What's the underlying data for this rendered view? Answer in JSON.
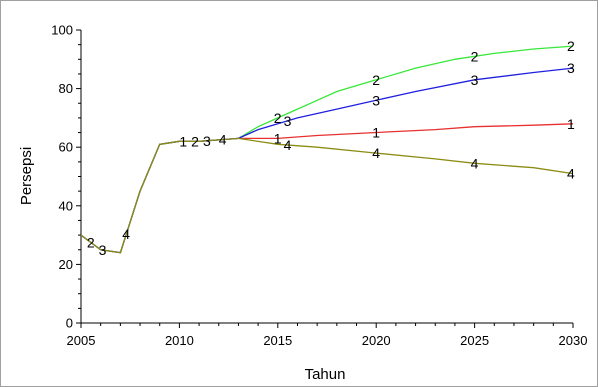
{
  "chart_data": {
    "type": "line",
    "title": "",
    "xlabel": "Tahun",
    "ylabel": "Persepsi",
    "xlim": [
      2005,
      2030
    ],
    "ylim": [
      0,
      100
    ],
    "x_ticks": [
      "2005",
      "2010",
      "2015",
      "2020",
      "2025",
      "2030"
    ],
    "y_ticks": [
      "0",
      "20",
      "40",
      "60",
      "80",
      "100"
    ],
    "grid": false,
    "legend": "none",
    "series": [
      {
        "name": "1",
        "color": "#e83030",
        "points": [
          [
            2005,
            30
          ],
          [
            2006,
            25
          ],
          [
            2007,
            24
          ],
          [
            2008,
            45
          ],
          [
            2009,
            61
          ],
          [
            2010,
            62
          ],
          [
            2011,
            62
          ],
          [
            2012,
            62.5
          ],
          [
            2013,
            63
          ],
          [
            2015,
            63
          ],
          [
            2017,
            64
          ],
          [
            2020,
            65
          ],
          [
            2023,
            66
          ],
          [
            2025,
            67
          ],
          [
            2028,
            67.5
          ],
          [
            2030,
            68
          ]
        ],
        "label_x": [
          2010.2,
          2015,
          2020,
          2030
        ]
      },
      {
        "name": "2",
        "color": "#38e838",
        "points": [
          [
            2005,
            30
          ],
          [
            2006,
            25
          ],
          [
            2007,
            24
          ],
          [
            2008,
            45
          ],
          [
            2009,
            61
          ],
          [
            2010,
            62
          ],
          [
            2011,
            62
          ],
          [
            2012,
            62.5
          ],
          [
            2013,
            63
          ],
          [
            2014,
            67
          ],
          [
            2015,
            70
          ],
          [
            2016,
            73
          ],
          [
            2017,
            76
          ],
          [
            2018,
            79
          ],
          [
            2020,
            83
          ],
          [
            2022,
            87
          ],
          [
            2024,
            90
          ],
          [
            2026,
            92
          ],
          [
            2028,
            93.5
          ],
          [
            2030,
            94.5
          ]
        ],
        "label_x": [
          2005.5,
          2010.8,
          2015,
          2020,
          2025,
          2030
        ]
      },
      {
        "name": "3",
        "color": "#2020e0",
        "points": [
          [
            2005,
            30
          ],
          [
            2006,
            25
          ],
          [
            2007,
            24
          ],
          [
            2008,
            45
          ],
          [
            2009,
            61
          ],
          [
            2010,
            62
          ],
          [
            2011,
            62
          ],
          [
            2012,
            62.5
          ],
          [
            2013,
            63
          ],
          [
            2014,
            66
          ],
          [
            2015,
            68
          ],
          [
            2016,
            70
          ],
          [
            2018,
            73
          ],
          [
            2020,
            76
          ],
          [
            2022,
            79
          ],
          [
            2025,
            83
          ],
          [
            2028,
            85.5
          ],
          [
            2030,
            87
          ]
        ],
        "label_x": [
          2006.1,
          2011.4,
          2015.5,
          2020,
          2025,
          2030
        ]
      },
      {
        "name": "4",
        "color": "#8c8c14",
        "points": [
          [
            2005,
            30
          ],
          [
            2006,
            25
          ],
          [
            2007,
            24
          ],
          [
            2008,
            45
          ],
          [
            2009,
            61
          ],
          [
            2010,
            62
          ],
          [
            2011,
            62
          ],
          [
            2012,
            62.5
          ],
          [
            2013,
            63
          ],
          [
            2015,
            61
          ],
          [
            2017,
            60
          ],
          [
            2020,
            58
          ],
          [
            2023,
            56
          ],
          [
            2025,
            54.5
          ],
          [
            2028,
            53
          ],
          [
            2030,
            51
          ]
        ],
        "label_x": [
          2007.3,
          2012.2,
          2015.5,
          2020,
          2025,
          2030
        ]
      }
    ]
  }
}
